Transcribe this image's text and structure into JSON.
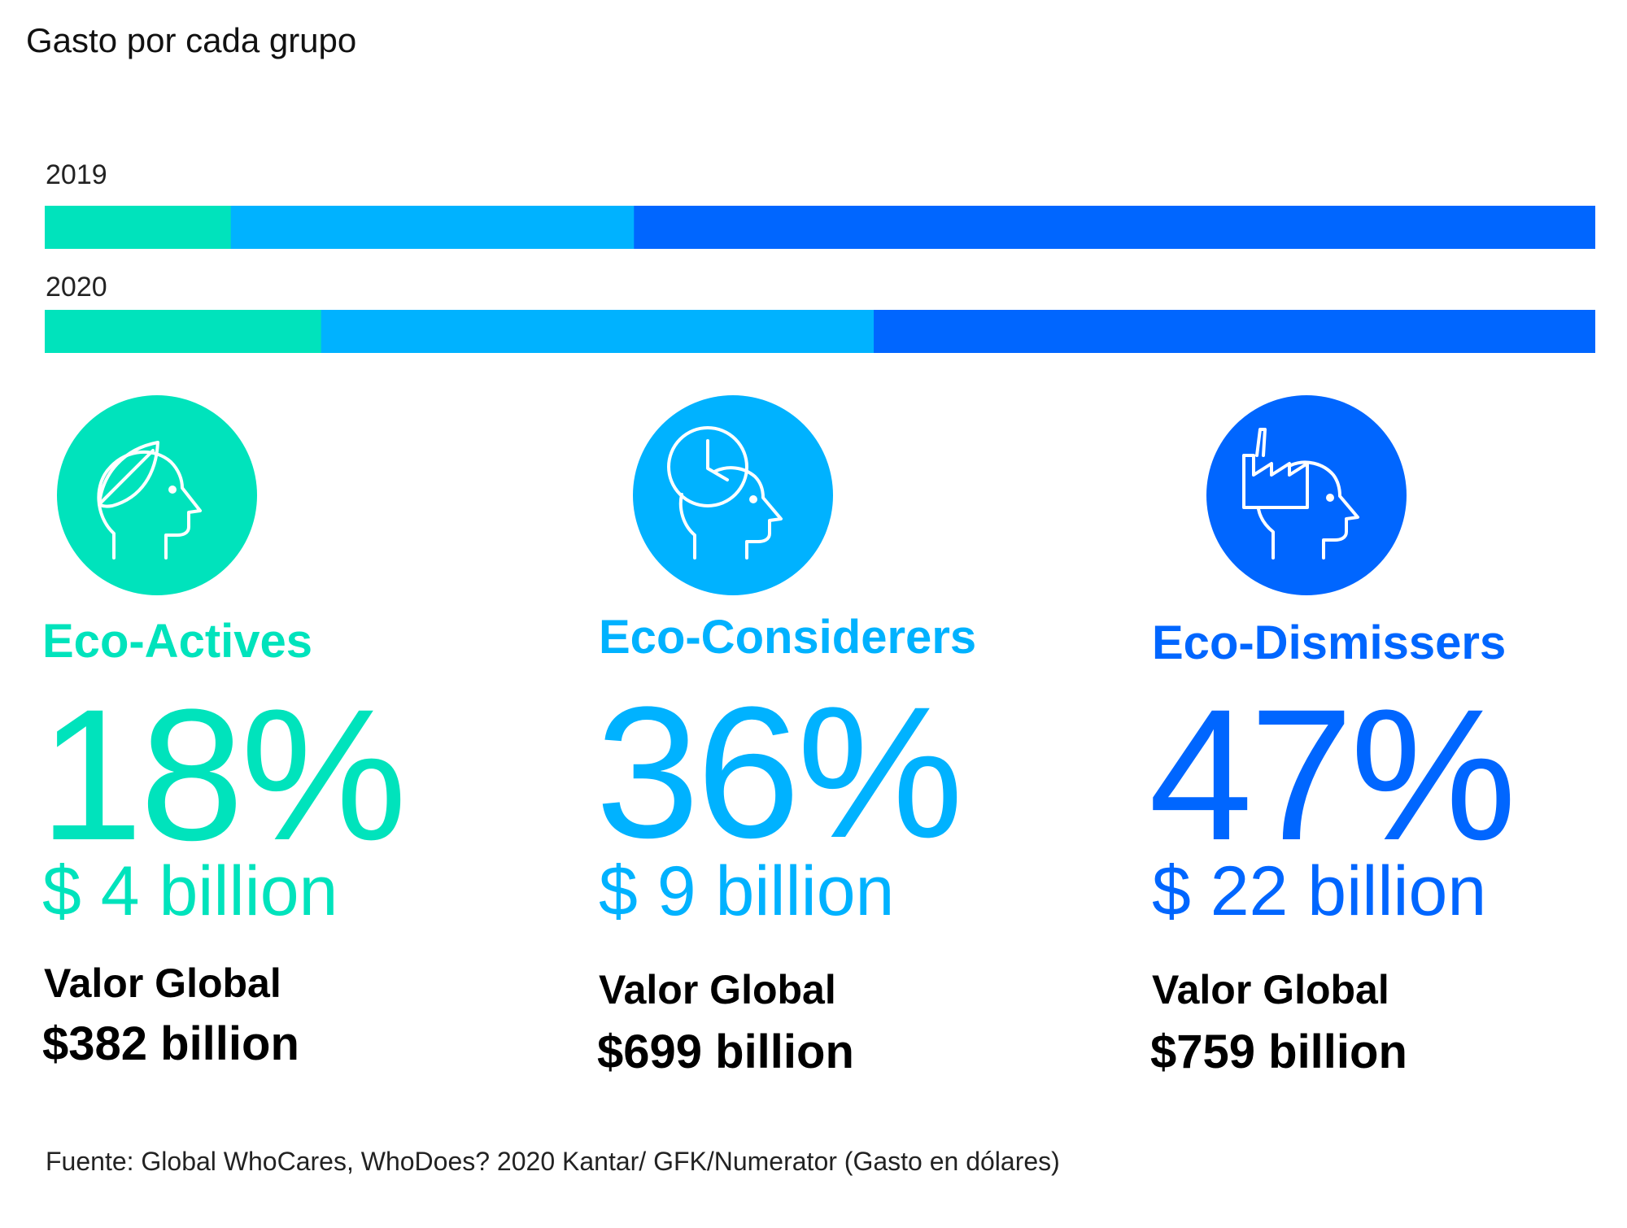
{
  "title": "Gasto por cada grupo",
  "source": "Fuente: Global WhoCares, WhoDoes? 2020 Kantar/ GFK/Numerator (Gasto en dólares)",
  "colors": {
    "eco_actives": "#00E3BC",
    "eco_considerers": "#00B2FF",
    "eco_dismissers": "#0066FF"
  },
  "chart_data": {
    "type": "bar",
    "stacked": true,
    "orientation": "horizontal",
    "categories": [
      "2019",
      "2020"
    ],
    "series": [
      {
        "name": "Eco-Actives",
        "color": "#00E3BC",
        "values": [
          12,
          18
        ]
      },
      {
        "name": "Eco-Considerers",
        "color": "#00B2FF",
        "values": [
          26,
          36
        ]
      },
      {
        "name": "Eco-Dismissers",
        "color": "#0066FF",
        "values": [
          62,
          47
        ]
      }
    ]
  },
  "groups": [
    {
      "name": "Eco-Actives",
      "icon": "leaf-head-icon",
      "percent": "18%",
      "spend": "$ 4 billion",
      "value_label": "Valor Global",
      "value": "$382 billion",
      "color": "#00E3BC"
    },
    {
      "name": "Eco-Considerers",
      "icon": "clock-head-icon",
      "percent": "36%",
      "spend": "$ 9 billion",
      "value_label": "Valor Global",
      "value": "$699 billion",
      "color": "#00B2FF"
    },
    {
      "name": "Eco-Dismissers",
      "icon": "factory-head-icon",
      "percent": "47%",
      "spend": "$ 22 billion",
      "value_label": "Valor Global",
      "value": "$759 billion",
      "color": "#0066FF"
    }
  ]
}
